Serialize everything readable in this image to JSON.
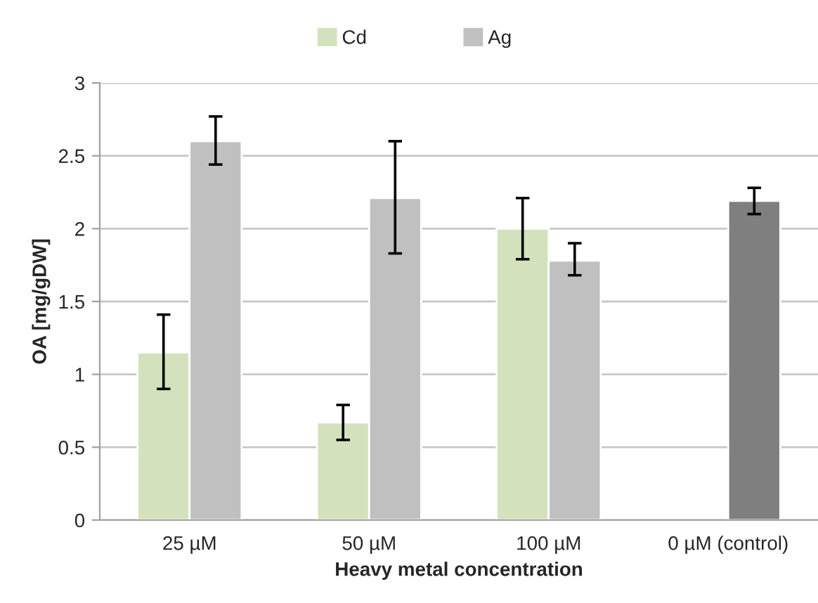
{
  "chart_data": {
    "type": "bar",
    "categories": [
      "25 µM",
      "50 µM",
      "100 µM",
      "0 µM (control)"
    ],
    "xlabel": "Heavy metal concentration",
    "ylabel": "OA [mg/gDW]",
    "series": [
      {
        "name": "Cd",
        "color": "#d3e2bc",
        "values": [
          1.15,
          0.67,
          2.0,
          null
        ],
        "errors": [
          [
            0.9,
            1.41
          ],
          [
            0.55,
            0.79
          ],
          [
            1.79,
            2.21
          ],
          null
        ]
      },
      {
        "name": "Ag",
        "color": "#c0c0c0",
        "colors": [
          "#c0c0c0",
          "#c0c0c0",
          "#c0c0c0",
          "#7f7f7f"
        ],
        "values": [
          2.6,
          2.21,
          1.78,
          2.19
        ],
        "errors": [
          [
            2.44,
            2.77
          ],
          [
            1.83,
            2.6
          ],
          [
            1.68,
            1.9
          ],
          [
            2.1,
            2.28
          ]
        ]
      }
    ],
    "ylim": [
      0,
      3
    ],
    "yticks": [
      0,
      0.5,
      1,
      1.5,
      2,
      2.5,
      3
    ],
    "grid": "y",
    "legend": "top"
  }
}
